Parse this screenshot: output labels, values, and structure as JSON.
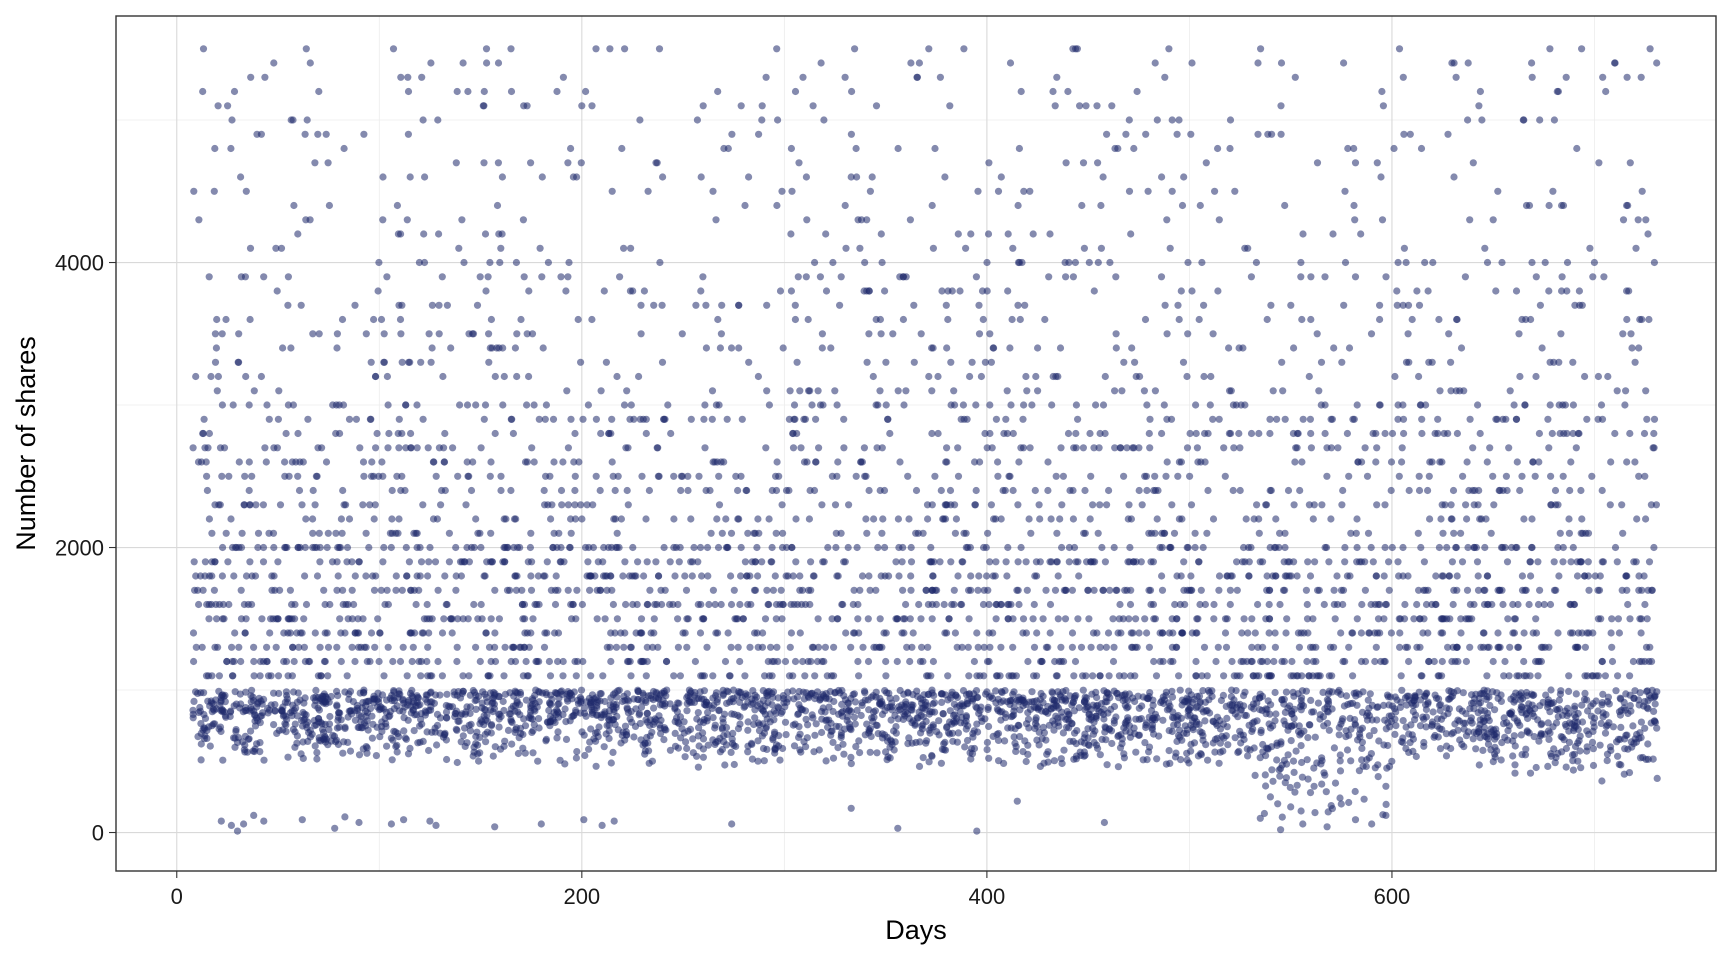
{
  "chart_data": {
    "type": "scatter",
    "title": "",
    "xlabel": "Days",
    "ylabel": "Number of shares",
    "xlim": [
      -30,
      760
    ],
    "ylim": [
      -270,
      5730
    ],
    "x_ticks": [
      0,
      200,
      400,
      600
    ],
    "x_tick_labels": [
      "0",
      "200",
      "400",
      "600"
    ],
    "y_ticks": [
      0,
      2000,
      4000
    ],
    "y_tick_labels": [
      "0",
      "2000",
      "4000"
    ],
    "grid": true,
    "legend": "none",
    "colors": {
      "point": "#1f2a6b",
      "point_opacity": 0.55,
      "background": "#ffffff",
      "grid": "#d9d9d9"
    },
    "series": [
      {
        "x_range": [
          8,
          731
        ],
        "shares_range": [
          0,
          5500
        ],
        "description_values": {
          "dense_band_low": [
            300,
            1000
          ],
          "discrete_levels": [
            1100,
            1200,
            1300,
            1400,
            1500,
            1600,
            1700,
            1800,
            1900,
            2000,
            2100,
            2200,
            2300,
            2400,
            2500,
            2600,
            2700,
            2800,
            2900,
            3000,
            3100,
            3200,
            3300,
            3400,
            3500,
            3600,
            3700,
            3800,
            3900,
            4000,
            4100,
            4200,
            4300,
            4400,
            4500,
            4600,
            4700,
            4800,
            4900,
            5000,
            5100,
            5200,
            5300,
            5400,
            5500
          ],
          "sparse_low_points": [
            [
              22,
              80
            ],
            [
              27,
              50
            ],
            [
              30,
              10
            ],
            [
              33,
              60
            ],
            [
              38,
              120
            ],
            [
              43,
              80
            ],
            [
              62,
              90
            ],
            [
              78,
              30
            ],
            [
              83,
              110
            ],
            [
              90,
              70
            ],
            [
              106,
              60
            ],
            [
              112,
              90
            ],
            [
              125,
              80
            ],
            [
              128,
              50
            ],
            [
              157,
              40
            ],
            [
              180,
              60
            ],
            [
              201,
              90
            ],
            [
              210,
              50
            ],
            [
              216,
              80
            ],
            [
              274,
              60
            ],
            [
              333,
              170
            ],
            [
              356,
              30
            ],
            [
              395,
              10
            ],
            [
              415,
              220
            ],
            [
              458,
              70
            ],
            [
              535,
              100
            ],
            [
              540,
              250
            ],
            [
              545,
              20
            ],
            [
              550,
              180
            ],
            [
              556,
              60
            ],
            [
              562,
              140
            ],
            [
              568,
              40
            ],
            [
              575,
              200
            ],
            [
              582,
              90
            ],
            [
              590,
              60
            ],
            [
              597,
              120
            ]
          ]
        }
      }
    ]
  }
}
